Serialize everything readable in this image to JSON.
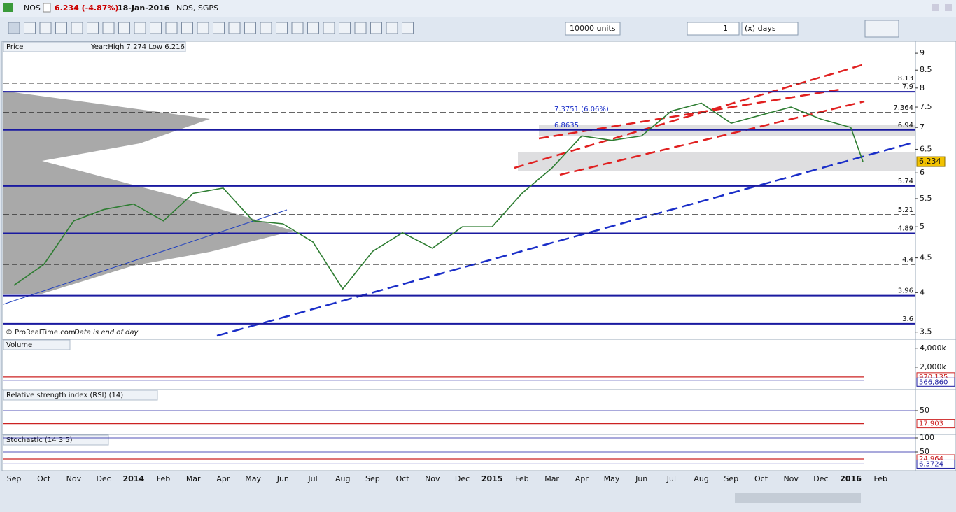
{
  "title_bar": {
    "symbol": "NOS",
    "change": "6.234 (-4.87%)",
    "date": "18-Jan-2016",
    "name": "NOS, SGPS"
  },
  "toolbar": {
    "units": "10000 units",
    "period": "1",
    "period_unit": "(x) days"
  },
  "chart_data": [
    {
      "type": "line",
      "title": "Price",
      "subtitle": "Year:High 7.274 Low 6.216",
      "log_scale": true,
      "ylim": [
        3.44,
        9.35
      ],
      "yticks": [
        3.5,
        4,
        4.5,
        5,
        5.5,
        6,
        6.5,
        7,
        7.5,
        8,
        8.5,
        9
      ],
      "categories": [
        "Sep",
        "Oct",
        "Nov",
        "Dec",
        "2014",
        "Feb",
        "Mar",
        "Apr",
        "May",
        "Jun",
        "Jul",
        "Aug",
        "Sep",
        "Oct",
        "Nov",
        "Dec",
        "2015",
        "Feb",
        "Mar",
        "Apr",
        "May",
        "Jun",
        "Jul",
        "Aug",
        "Sep",
        "Oct",
        "Nov",
        "Dec",
        "2016",
        "Feb"
      ],
      "values": [
        4.1,
        4.4,
        5.1,
        5.3,
        5.4,
        5.1,
        5.6,
        5.7,
        5.1,
        5.05,
        4.75,
        4.05,
        4.6,
        4.9,
        4.65,
        5.0,
        5.0,
        5.6,
        6.1,
        6.8,
        6.7,
        6.8,
        7.4,
        7.6,
        7.1,
        7.3,
        7.5,
        7.2,
        7.0,
        null
      ],
      "color": "#2e7d32",
      "last_value": 6.234,
      "levels": [
        {
          "value": 8.13,
          "style": "dashed"
        },
        {
          "value": 7.9,
          "style": "solid"
        },
        {
          "value": 7.364,
          "style": "dashed"
        },
        {
          "value": 6.94,
          "style": "solid"
        },
        {
          "value": 5.74,
          "style": "solid"
        },
        {
          "value": 5.21,
          "style": "dashed"
        },
        {
          "value": 4.89,
          "style": "solid"
        },
        {
          "value": 4.4,
          "style": "dashed"
        },
        {
          "value": 3.96,
          "style": "solid"
        },
        {
          "value": 3.6,
          "style": "solid"
        }
      ],
      "annotations": [
        "7.3751 (6.06%)",
        "6.8635"
      ],
      "footer": [
        "© ProRealTime.com",
        "Data is end of day"
      ]
    },
    {
      "type": "bar",
      "title": "Volume",
      "ylim": [
        0,
        4500000
      ],
      "yticks": [
        {
          "value": 4000000,
          "label": "4,000k"
        },
        {
          "value": 2000000,
          "label": "2,000k"
        }
      ],
      "values": [
        970135,
        566860
      ],
      "value_labels": [
        "970,135",
        "566,860"
      ],
      "colors": [
        "#cc2222",
        "#1a1aa0"
      ]
    },
    {
      "type": "oscillator",
      "title": "Relative strength index (RSI) (14)",
      "ylim": [
        0,
        100
      ],
      "yticks": [
        50
      ],
      "values": [
        17.903
      ],
      "colors": [
        "#cc2222"
      ]
    },
    {
      "type": "oscillator",
      "title": "Stochastic (14 3 5)",
      "ylim": [
        0,
        100
      ],
      "yticks": [
        100,
        50
      ],
      "values": [
        24.964,
        6.3724
      ],
      "colors": [
        "#cc2222",
        "#1a1aa0"
      ]
    }
  ]
}
